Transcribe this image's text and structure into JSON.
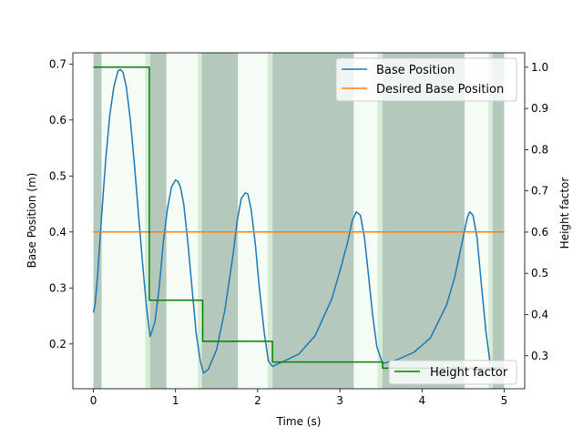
{
  "chart_data": {
    "type": "line",
    "xlabel": "Time (s)",
    "ylabel": "Base Position (m)",
    "y2label": "Height factor",
    "xlim": [
      -0.25,
      5.25
    ],
    "ylim": [
      0.12,
      0.72
    ],
    "y2lim": [
      0.22,
      1.035
    ],
    "xticks": [
      0,
      1,
      2,
      3,
      4,
      5
    ],
    "yticks": [
      0.2,
      0.3,
      0.4,
      0.5,
      0.6,
      0.7
    ],
    "y2ticks": [
      0.3,
      0.4,
      0.5,
      0.6,
      0.7,
      0.8,
      0.9,
      1.0
    ],
    "grid": false,
    "legend_upper": {
      "placement": "top-right",
      "entries": [
        "Base Position",
        "Desired Base Position"
      ]
    },
    "legend_lower": {
      "placement": "bottom-right",
      "entries": [
        "Height factor"
      ]
    },
    "shaded_intervals": [
      {
        "start": 0.0,
        "end": 0.1,
        "color": "#b4c8bc"
      },
      {
        "start": 0.1,
        "end": 0.63,
        "color": "#f5fbf5"
      },
      {
        "start": 0.63,
        "end": 0.69,
        "color": "#d6ebd5"
      },
      {
        "start": 0.69,
        "end": 0.89,
        "color": "#b4c8bc"
      },
      {
        "start": 0.89,
        "end": 1.27,
        "color": "#f5fbf5"
      },
      {
        "start": 1.27,
        "end": 1.32,
        "color": "#d6ebd5"
      },
      {
        "start": 1.32,
        "end": 1.76,
        "color": "#b4c8bc"
      },
      {
        "start": 1.76,
        "end": 2.12,
        "color": "#f5fbf5"
      },
      {
        "start": 2.12,
        "end": 2.18,
        "color": "#d6ebd5"
      },
      {
        "start": 2.18,
        "end": 3.17,
        "color": "#b4c8bc"
      },
      {
        "start": 3.17,
        "end": 3.46,
        "color": "#f5fbf5"
      },
      {
        "start": 3.46,
        "end": 3.52,
        "color": "#d6ebd5"
      },
      {
        "start": 3.52,
        "end": 4.52,
        "color": "#b4c8bc"
      },
      {
        "start": 4.52,
        "end": 4.81,
        "color": "#f5fbf5"
      },
      {
        "start": 4.81,
        "end": 4.86,
        "color": "#d6ebd5"
      },
      {
        "start": 4.86,
        "end": 5.0,
        "color": "#b4c8bc"
      }
    ],
    "series": [
      {
        "name": "Base Position",
        "axis": "left",
        "color": "#1f77b4",
        "x": [
          0.0,
          0.02,
          0.05,
          0.1,
          0.15,
          0.2,
          0.25,
          0.3,
          0.33,
          0.36,
          0.4,
          0.45,
          0.5,
          0.55,
          0.6,
          0.65,
          0.69,
          0.75,
          0.8,
          0.85,
          0.9,
          0.95,
          1.0,
          1.03,
          1.06,
          1.1,
          1.15,
          1.2,
          1.25,
          1.3,
          1.34,
          1.4,
          1.5,
          1.6,
          1.7,
          1.75,
          1.8,
          1.85,
          1.88,
          1.92,
          1.97,
          2.02,
          2.08,
          2.13,
          2.18,
          2.3,
          2.5,
          2.7,
          2.9,
          3.0,
          3.1,
          3.15,
          3.2,
          3.25,
          3.3,
          3.35,
          3.4,
          3.45,
          3.52,
          3.7,
          3.9,
          4.1,
          4.3,
          4.4,
          4.5,
          4.55,
          4.58,
          4.62,
          4.67,
          4.72,
          4.78,
          4.83
        ],
        "y": [
          0.256,
          0.27,
          0.32,
          0.43,
          0.53,
          0.61,
          0.66,
          0.688,
          0.69,
          0.685,
          0.66,
          0.6,
          0.52,
          0.43,
          0.34,
          0.26,
          0.213,
          0.24,
          0.3,
          0.38,
          0.44,
          0.48,
          0.493,
          0.49,
          0.48,
          0.45,
          0.38,
          0.3,
          0.22,
          0.17,
          0.148,
          0.155,
          0.19,
          0.26,
          0.36,
          0.42,
          0.46,
          0.47,
          0.468,
          0.44,
          0.38,
          0.3,
          0.22,
          0.17,
          0.16,
          0.168,
          0.182,
          0.215,
          0.28,
          0.33,
          0.385,
          0.42,
          0.436,
          0.43,
          0.39,
          0.32,
          0.25,
          0.195,
          0.165,
          0.172,
          0.185,
          0.21,
          0.27,
          0.32,
          0.39,
          0.425,
          0.436,
          0.43,
          0.39,
          0.31,
          0.22,
          0.165
        ]
      },
      {
        "name": "Desired Base Position",
        "axis": "left",
        "color": "#ff7f0e",
        "x": [
          0.0,
          5.0
        ],
        "y": [
          0.4,
          0.4
        ]
      },
      {
        "name": "Height factor",
        "axis": "right",
        "color": "#008000",
        "x": [
          0.0,
          0.68,
          0.68,
          1.33,
          1.33,
          2.18,
          2.18,
          3.52,
          3.52,
          5.0
        ],
        "y": [
          1.0,
          1.0,
          0.435,
          0.435,
          0.335,
          0.335,
          0.285,
          0.285,
          0.27,
          0.27
        ]
      }
    ]
  }
}
